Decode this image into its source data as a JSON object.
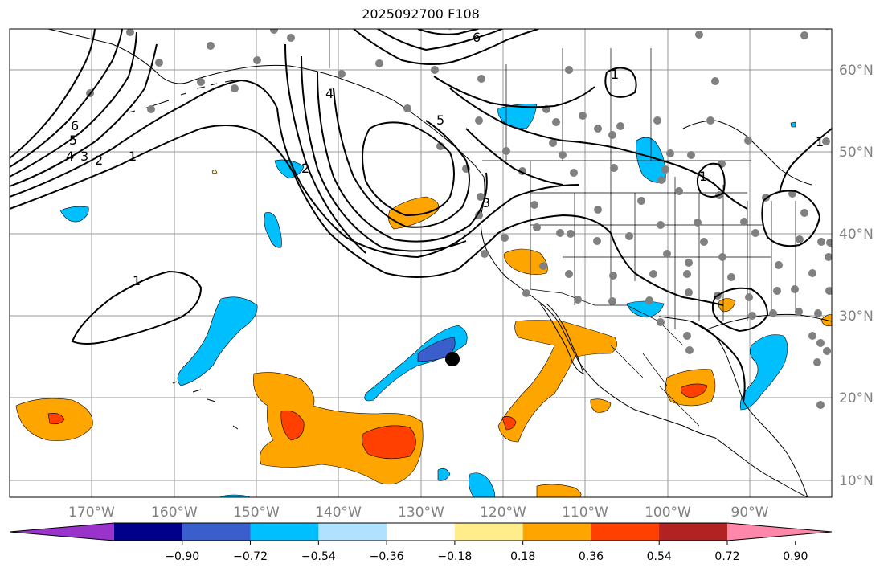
{
  "title": "2025092700 F108",
  "latitude_labels": [
    "60°N",
    "50°N",
    "40°N",
    "30°N",
    "20°N",
    "10°N"
  ],
  "longitude_labels": [
    "170°W",
    "160°W",
    "150°W",
    "140°W",
    "130°W",
    "120°W",
    "110°W",
    "100°W",
    "90°W"
  ],
  "contour_labels": [
    "1",
    "2",
    "3",
    "4",
    "5",
    "6",
    "1",
    "2",
    "3",
    "4",
    "5",
    "6",
    "1",
    "1",
    "1"
  ],
  "colorbar": {
    "tick_labels": [
      "−0.90",
      "−0.72",
      "−0.54",
      "−0.36",
      "−0.18",
      "0.18",
      "0.36",
      "0.54",
      "0.72",
      "0.90"
    ],
    "colors": [
      "#9933cc",
      "#00008b",
      "#3a5fcd",
      "#00bfff",
      "#b0e2ff",
      "#ffffff",
      "#ffec8b",
      "#ffa500",
      "#ff4000",
      "#b22222",
      "#ff88aa"
    ]
  },
  "marker": {
    "lat": 25,
    "lon": -126
  }
}
